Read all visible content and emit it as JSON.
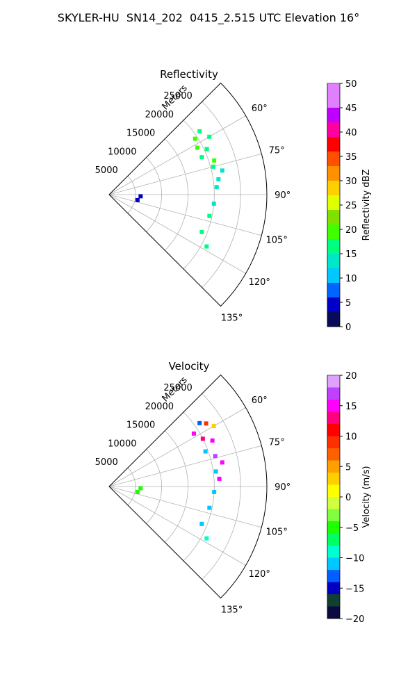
{
  "figure_title": "SKYLER-HU  SN14_202  0415_2.515 UTC Elevation 16°",
  "chart_data": [
    {
      "type": "polar-sector-scatter",
      "title": "Reflectivity",
      "range_label": "Meters",
      "range_ticks": [
        "5000",
        "10000",
        "15000",
        "20000",
        "25000"
      ],
      "range_max": 30000,
      "azimuth_range_deg": [
        45,
        135
      ],
      "azimuth_tick_labels": [
        "60°",
        "75°",
        "90°",
        "105°",
        "120°",
        "135°"
      ],
      "grid": true,
      "colorbar": {
        "label": "Reflectivity dBZ",
        "min": 0,
        "max": 50,
        "ticks": [
          "0",
          "5",
          "10",
          "15",
          "20",
          "25",
          "30",
          "35",
          "40",
          "45",
          "50"
        ]
      },
      "points": [
        {
          "az": 55,
          "range": 21000,
          "value": 17
        },
        {
          "az": 57,
          "range": 19500,
          "value": 18
        },
        {
          "az": 60,
          "range": 22000,
          "value": 16
        },
        {
          "az": 62,
          "range": 19000,
          "value": 18
        },
        {
          "az": 65,
          "range": 20500,
          "value": 17
        },
        {
          "az": 68,
          "range": 19000,
          "value": 15
        },
        {
          "az": 72,
          "range": 21000,
          "value": 18
        },
        {
          "az": 75,
          "range": 20500,
          "value": 17
        },
        {
          "az": 78,
          "range": 22000,
          "value": 14
        },
        {
          "az": 82,
          "range": 21000,
          "value": 14
        },
        {
          "az": 86,
          "range": 20500,
          "value": 13
        },
        {
          "az": 95,
          "range": 20000,
          "value": 14
        },
        {
          "az": 102,
          "range": 19500,
          "value": 15
        },
        {
          "az": 112,
          "range": 19000,
          "value": 16
        },
        {
          "az": 118,
          "range": 21000,
          "value": 17
        },
        {
          "az": 93,
          "range": 6000,
          "value": 5
        },
        {
          "az": 101,
          "range": 5500,
          "value": 5
        }
      ]
    },
    {
      "type": "polar-sector-scatter",
      "title": "Velocity",
      "range_label": "Meters",
      "range_ticks": [
        "5000",
        "10000",
        "15000",
        "20000",
        "25000"
      ],
      "range_max": 30000,
      "azimuth_range_deg": [
        45,
        135
      ],
      "azimuth_tick_labels": [
        "60°",
        "75°",
        "90°",
        "105°",
        "120°",
        "135°"
      ],
      "grid": true,
      "colorbar": {
        "label": "Velocity (m/s)",
        "min": -20,
        "max": 20,
        "ticks": [
          "−20",
          "−15",
          "−10",
          "−5",
          "0",
          "5",
          "10",
          "15",
          "20"
        ]
      },
      "points": [
        {
          "az": 55,
          "range": 21000,
          "value": -13
        },
        {
          "az": 57,
          "range": 22000,
          "value": 8
        },
        {
          "az": 58,
          "range": 19000,
          "value": 15
        },
        {
          "az": 60,
          "range": 23000,
          "value": 3
        },
        {
          "az": 63,
          "range": 20000,
          "value": 12
        },
        {
          "az": 66,
          "range": 21500,
          "value": 14
        },
        {
          "az": 70,
          "range": 19500,
          "value": -12
        },
        {
          "az": 74,
          "range": 21000,
          "value": 16
        },
        {
          "az": 78,
          "range": 22000,
          "value": 15
        },
        {
          "az": 82,
          "range": 20500,
          "value": -11
        },
        {
          "az": 86,
          "range": 21000,
          "value": 14
        },
        {
          "az": 93,
          "range": 20000,
          "value": -12
        },
        {
          "az": 102,
          "range": 19500,
          "value": -11
        },
        {
          "az": 112,
          "range": 19000,
          "value": -12
        },
        {
          "az": 118,
          "range": 21000,
          "value": -9
        },
        {
          "az": 93,
          "range": 6000,
          "value": -6
        },
        {
          "az": 101,
          "range": 5500,
          "value": -5
        }
      ]
    }
  ]
}
